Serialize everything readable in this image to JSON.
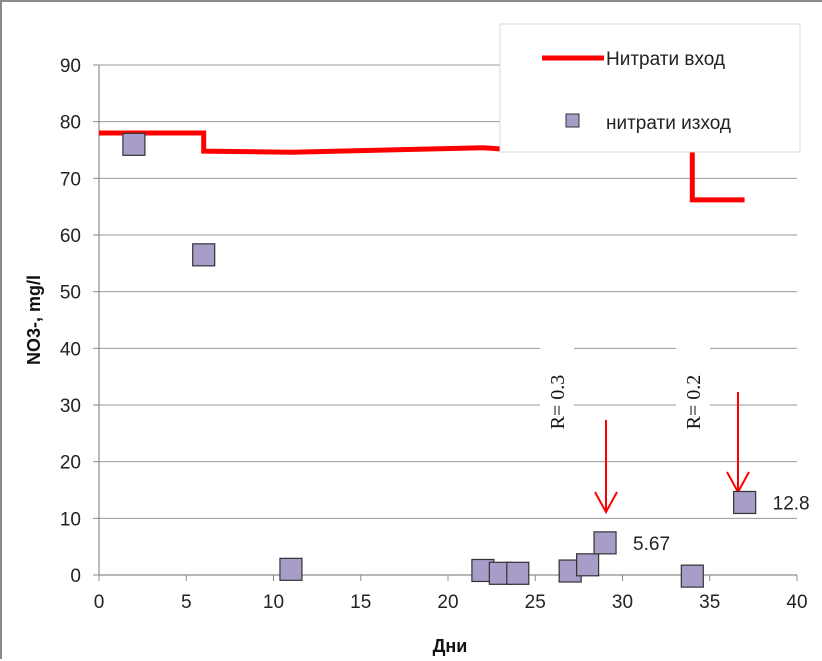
{
  "chart_data": {
    "type": "line+scatter",
    "xlabel": "Дни",
    "ylabel": "NO3-, mg/l",
    "xlim": [
      0,
      40
    ],
    "ylim": [
      0,
      90
    ],
    "xticks": [
      "0",
      "5",
      "10",
      "15",
      "20",
      "25",
      "30",
      "35",
      "40"
    ],
    "yticks": [
      "0",
      "10",
      "20",
      "30",
      "40",
      "50",
      "60",
      "70",
      "80",
      "90"
    ],
    "grid": "horizontal",
    "legend_position": "top-right",
    "series": [
      {
        "name": "Нитрати вход",
        "kind": "line",
        "color": "#ff0000",
        "points": [
          [
            0,
            78
          ],
          [
            6,
            78
          ],
          [
            6,
            74.8
          ],
          [
            11,
            74.6
          ],
          [
            22,
            75.4
          ],
          [
            23,
            75.2
          ],
          [
            27,
            75.2
          ],
          [
            27,
            77
          ],
          [
            34,
            77
          ],
          [
            34,
            66.2
          ],
          [
            37,
            66.2
          ]
        ]
      },
      {
        "name": "нитрати изход",
        "kind": "scatter",
        "color": "#a89cc8",
        "points": [
          [
            2,
            76
          ],
          [
            6,
            56.5
          ],
          [
            11,
            1
          ],
          [
            22,
            0.8
          ],
          [
            23,
            0.3
          ],
          [
            24,
            0.3
          ],
          [
            27,
            0.7
          ],
          [
            28,
            1.8
          ],
          [
            29,
            5.67
          ],
          [
            34,
            -0.2
          ],
          [
            37,
            12.8
          ]
        ]
      }
    ],
    "data_labels": [
      {
        "x": 29,
        "y": 5.67,
        "text": "5.67"
      },
      {
        "x": 37,
        "y": 12.8,
        "text": "12.8"
      }
    ],
    "annotations": [
      {
        "text": "R= 0.3",
        "x": 29,
        "arrow_to_y": 10
      },
      {
        "text": "R= 0.2",
        "x": 36.5,
        "arrow_to_y": 15
      }
    ]
  }
}
